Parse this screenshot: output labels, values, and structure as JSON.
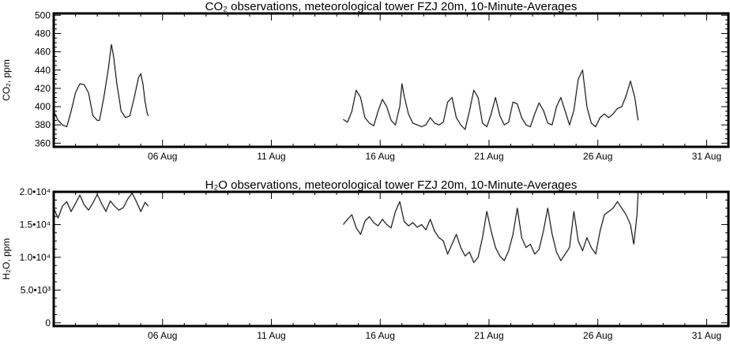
{
  "chart_data": [
    {
      "type": "line",
      "title": "CO₂ observations, meteorological tower FZJ 20m, 10-Minute-Averages",
      "ylabel": "CO₂, ppm",
      "xlabel": "",
      "x_unit": "day of month (August)",
      "xlim": [
        1,
        32
      ],
      "ylim": [
        356,
        502
      ],
      "x_ticks": [
        {
          "value": 6,
          "label": "06 Aug"
        },
        {
          "value": 11,
          "label": "11 Aug"
        },
        {
          "value": 16,
          "label": "16 Aug"
        },
        {
          "value": 21,
          "label": "21 Aug"
        },
        {
          "value": 26,
          "label": "26 Aug"
        },
        {
          "value": 31,
          "label": "31 Aug"
        }
      ],
      "y_ticks": [
        {
          "value": 360,
          "label": "360"
        },
        {
          "value": 380,
          "label": "380"
        },
        {
          "value": 400,
          "label": "400"
        },
        {
          "value": 420,
          "label": "420"
        },
        {
          "value": 440,
          "label": "440"
        },
        {
          "value": 460,
          "label": "460"
        },
        {
          "value": 480,
          "label": "480"
        },
        {
          "value": 500,
          "label": "500"
        }
      ],
      "grid": false,
      "color": "#000000",
      "segments": [
        [
          [
            1.0,
            395
          ],
          [
            1.2,
            385
          ],
          [
            1.4,
            380
          ],
          [
            1.6,
            378
          ],
          [
            1.8,
            395
          ],
          [
            2.0,
            415
          ],
          [
            2.2,
            425
          ],
          [
            2.4,
            424
          ],
          [
            2.6,
            415
          ],
          [
            2.8,
            390
          ],
          [
            3.0,
            385
          ],
          [
            3.1,
            385
          ],
          [
            3.3,
            410
          ],
          [
            3.5,
            440
          ],
          [
            3.65,
            468
          ],
          [
            3.75,
            455
          ],
          [
            3.9,
            425
          ],
          [
            4.1,
            395
          ],
          [
            4.3,
            388
          ],
          [
            4.5,
            390
          ],
          [
            4.7,
            410
          ],
          [
            4.9,
            432
          ],
          [
            5.0,
            436
          ],
          [
            5.1,
            425
          ],
          [
            5.2,
            405
          ],
          [
            5.3,
            392
          ],
          [
            5.35,
            390
          ]
        ],
        [
          [
            14.3,
            386
          ],
          [
            14.5,
            383
          ],
          [
            14.7,
            395
          ],
          [
            14.9,
            418
          ],
          [
            15.1,
            410
          ],
          [
            15.3,
            388
          ],
          [
            15.5,
            382
          ],
          [
            15.7,
            379
          ],
          [
            15.9,
            395
          ],
          [
            16.1,
            408
          ],
          [
            16.3,
            400
          ],
          [
            16.5,
            385
          ],
          [
            16.7,
            380
          ],
          [
            16.9,
            400
          ],
          [
            17.0,
            425
          ],
          [
            17.1,
            412
          ],
          [
            17.3,
            392
          ],
          [
            17.5,
            382
          ],
          [
            17.7,
            380
          ],
          [
            17.9,
            378
          ],
          [
            18.1,
            380
          ],
          [
            18.3,
            388
          ],
          [
            18.5,
            382
          ],
          [
            18.7,
            380
          ],
          [
            18.9,
            383
          ],
          [
            19.1,
            405
          ],
          [
            19.3,
            410
          ],
          [
            19.5,
            388
          ],
          [
            19.7,
            380
          ],
          [
            19.9,
            375
          ],
          [
            20.1,
            395
          ],
          [
            20.3,
            418
          ],
          [
            20.5,
            410
          ],
          [
            20.7,
            382
          ],
          [
            20.9,
            378
          ],
          [
            21.1,
            392
          ],
          [
            21.3,
            410
          ],
          [
            21.5,
            390
          ],
          [
            21.7,
            380
          ],
          [
            21.9,
            383
          ],
          [
            22.1,
            405
          ],
          [
            22.3,
            403
          ],
          [
            22.5,
            388
          ],
          [
            22.7,
            380
          ],
          [
            22.9,
            378
          ],
          [
            23.1,
            392
          ],
          [
            23.3,
            404
          ],
          [
            23.5,
            396
          ],
          [
            23.7,
            382
          ],
          [
            23.9,
            380
          ],
          [
            24.1,
            400
          ],
          [
            24.3,
            410
          ],
          [
            24.5,
            395
          ],
          [
            24.7,
            380
          ],
          [
            24.9,
            396
          ],
          [
            25.1,
            430
          ],
          [
            25.3,
            440
          ],
          [
            25.5,
            400
          ],
          [
            25.7,
            382
          ],
          [
            25.9,
            378
          ],
          [
            26.1,
            388
          ],
          [
            26.3,
            392
          ],
          [
            26.5,
            388
          ],
          [
            26.7,
            392
          ],
          [
            26.9,
            398
          ],
          [
            27.1,
            400
          ],
          [
            27.3,
            412
          ],
          [
            27.5,
            428
          ],
          [
            27.7,
            410
          ],
          [
            27.85,
            385
          ]
        ]
      ]
    },
    {
      "type": "line",
      "title": "H₂O observations, meteorological tower FZJ 20m, 10-Minute-Averages",
      "ylabel": "H₂O, ppm",
      "xlabel": "",
      "x_unit": "day of month (August)",
      "xlim": [
        1,
        32
      ],
      "ylim": [
        -500,
        20000
      ],
      "x_ticks": [
        {
          "value": 6,
          "label": "06 Aug"
        },
        {
          "value": 11,
          "label": "11 Aug"
        },
        {
          "value": 16,
          "label": "16 Aug"
        },
        {
          "value": 21,
          "label": "21 Aug"
        },
        {
          "value": 26,
          "label": "26 Aug"
        },
        {
          "value": 31,
          "label": "31 Aug"
        }
      ],
      "y_ticks": [
        {
          "value": 0,
          "label": "0"
        },
        {
          "value": 5000,
          "label": "5.0•10³"
        },
        {
          "value": 10000,
          "label": "1.0•10⁴"
        },
        {
          "value": 15000,
          "label": "1.5•10⁴"
        },
        {
          "value": 20000,
          "label": "2.0•10⁴"
        }
      ],
      "grid": false,
      "color": "#000000",
      "segments": [
        [
          [
            1.0,
            17500
          ],
          [
            1.2,
            16000
          ],
          [
            1.4,
            17800
          ],
          [
            1.6,
            18500
          ],
          [
            1.8,
            17000
          ],
          [
            2.0,
            18200
          ],
          [
            2.2,
            19500
          ],
          [
            2.4,
            18000
          ],
          [
            2.6,
            17200
          ],
          [
            2.8,
            18300
          ],
          [
            3.0,
            19600
          ],
          [
            3.2,
            18200
          ],
          [
            3.4,
            17000
          ],
          [
            3.6,
            18600
          ],
          [
            3.8,
            17800
          ],
          [
            4.0,
            17200
          ],
          [
            4.2,
            17600
          ],
          [
            4.4,
            18900
          ],
          [
            4.6,
            19800
          ],
          [
            4.8,
            18500
          ],
          [
            5.0,
            17000
          ],
          [
            5.2,
            18400
          ],
          [
            5.35,
            17800
          ]
        ],
        [
          [
            14.3,
            15000
          ],
          [
            14.5,
            15800
          ],
          [
            14.7,
            16500
          ],
          [
            14.9,
            14500
          ],
          [
            15.1,
            13500
          ],
          [
            15.3,
            15500
          ],
          [
            15.5,
            16200
          ],
          [
            15.7,
            15300
          ],
          [
            15.9,
            14800
          ],
          [
            16.1,
            15800
          ],
          [
            16.3,
            15000
          ],
          [
            16.5,
            14500
          ],
          [
            16.7,
            17000
          ],
          [
            16.9,
            18500
          ],
          [
            17.1,
            15500
          ],
          [
            17.3,
            14800
          ],
          [
            17.5,
            15300
          ],
          [
            17.7,
            14600
          ],
          [
            17.9,
            15000
          ],
          [
            18.1,
            14200
          ],
          [
            18.3,
            15800
          ],
          [
            18.5,
            14000
          ],
          [
            18.7,
            13000
          ],
          [
            18.9,
            12500
          ],
          [
            19.1,
            10500
          ],
          [
            19.3,
            12000
          ],
          [
            19.5,
            13500
          ],
          [
            19.7,
            11500
          ],
          [
            19.9,
            10200
          ],
          [
            20.1,
            10800
          ],
          [
            20.3,
            9200
          ],
          [
            20.5,
            10000
          ],
          [
            20.7,
            13000
          ],
          [
            20.9,
            17000
          ],
          [
            21.1,
            14000
          ],
          [
            21.3,
            11500
          ],
          [
            21.5,
            10200
          ],
          [
            21.7,
            9500
          ],
          [
            21.9,
            11000
          ],
          [
            22.1,
            13500
          ],
          [
            22.3,
            17500
          ],
          [
            22.5,
            13000
          ],
          [
            22.7,
            11500
          ],
          [
            22.9,
            12000
          ],
          [
            23.1,
            10500
          ],
          [
            23.3,
            11200
          ],
          [
            23.5,
            14000
          ],
          [
            23.7,
            17500
          ],
          [
            23.9,
            13500
          ],
          [
            24.1,
            10800
          ],
          [
            24.3,
            9500
          ],
          [
            24.5,
            10500
          ],
          [
            24.7,
            11500
          ],
          [
            24.9,
            17000
          ],
          [
            25.1,
            12500
          ],
          [
            25.3,
            11000
          ],
          [
            25.5,
            13000
          ],
          [
            25.7,
            11500
          ],
          [
            25.9,
            10500
          ],
          [
            26.1,
            14000
          ],
          [
            26.3,
            16500
          ],
          [
            26.5,
            17000
          ],
          [
            26.7,
            17500
          ],
          [
            26.9,
            18500
          ],
          [
            27.1,
            17500
          ],
          [
            27.3,
            16500
          ],
          [
            27.5,
            15000
          ],
          [
            27.65,
            12000
          ],
          [
            27.8,
            16500
          ],
          [
            27.85,
            20000
          ]
        ]
      ]
    }
  ]
}
